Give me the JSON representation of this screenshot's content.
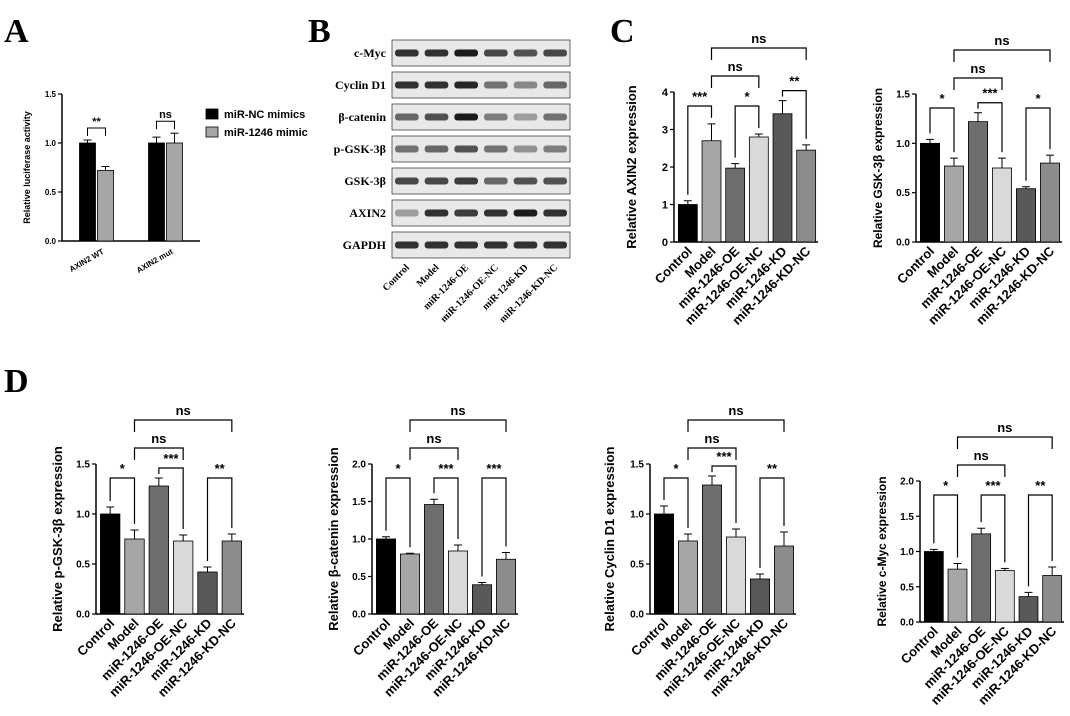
{
  "panel_labels": [
    "A",
    "B",
    "C",
    "D"
  ],
  "western_blot": {
    "proteins": [
      "c-Myc",
      "Cyclin D1",
      "β-catenin",
      "p-GSK-3β",
      "GSK-3β",
      "AXIN2",
      "GAPDH"
    ],
    "lanes": [
      "Control",
      "Model",
      "miR-1246-OE",
      "miR-1246-OE-NC",
      "miR-1246-KD",
      "miR-1246-KD-NC"
    ]
  },
  "chart_data": [
    {
      "id": "A",
      "type": "bar",
      "categories": [
        "AXIN2 WT",
        "AXIN2 mut"
      ],
      "series": [
        {
          "name": "miR-NC mimics",
          "values": [
            1.0,
            1.0
          ],
          "errors": [
            0.03,
            0.06
          ],
          "color": "#000000"
        },
        {
          "name": "miR-1246 mimic",
          "values": [
            0.72,
            1.0
          ],
          "errors": [
            0.04,
            0.1
          ],
          "color": "#a6a6a6"
        }
      ],
      "title": "",
      "xlabel": "",
      "ylabel": "Relative luciferase activity",
      "ylim": [
        0,
        1.5
      ],
      "yticks": [
        "0.0",
        "0.5",
        "1.0",
        "1.5"
      ],
      "legend": "right",
      "significance": [
        {
          "text": "**",
          "category": 0
        },
        {
          "text": "ns",
          "category": 1
        }
      ]
    },
    {
      "id": "C1",
      "type": "bar",
      "categories": [
        "Control",
        "Model",
        "miR-1246-OE",
        "miR-1246-OE-NC",
        "miR-1246-KD",
        "miR-1246-KD-NC"
      ],
      "values": [
        1.0,
        2.7,
        1.97,
        2.8,
        3.42,
        2.45
      ],
      "errors": [
        0.1,
        0.45,
        0.12,
        0.08,
        0.35,
        0.14
      ],
      "colors": [
        "#000000",
        "#a6a6a6",
        "#6e6e6e",
        "#d9d9d9",
        "#595959",
        "#8c8c8c"
      ],
      "title": "",
      "ylabel": "Relative AXIN2 expression",
      "ylim": [
        0,
        4
      ],
      "yticks": [
        "0",
        "1",
        "2",
        "3",
        "4"
      ],
      "significance": [
        {
          "text": "***",
          "from": 0,
          "to": 1,
          "level": 0
        },
        {
          "text": "*",
          "from": 2,
          "to": 3,
          "level": 0
        },
        {
          "text": "**",
          "from": 4,
          "to": 5,
          "level": 0
        },
        {
          "text": "ns",
          "from": 1,
          "to": 3,
          "level": 1
        },
        {
          "text": "ns",
          "from": 1,
          "to": 5,
          "level": 2
        }
      ]
    },
    {
      "id": "C2",
      "type": "bar",
      "categories": [
        "Control",
        "Model",
        "miR-1246-OE",
        "miR-1246-OE-NC",
        "miR-1246-KD",
        "miR-1246-KD-NC"
      ],
      "values": [
        1.0,
        0.77,
        1.22,
        0.75,
        0.54,
        0.8
      ],
      "errors": [
        0.04,
        0.08,
        0.09,
        0.1,
        0.02,
        0.08
      ],
      "colors": [
        "#000000",
        "#a6a6a6",
        "#6e6e6e",
        "#d9d9d9",
        "#595959",
        "#8c8c8c"
      ],
      "title": "",
      "ylabel": "Relative GSK-3β expression",
      "ylim": [
        0,
        1.5
      ],
      "yticks": [
        "0.0",
        "0.5",
        "1.0",
        "1.5"
      ],
      "significance": [
        {
          "text": "*",
          "from": 0,
          "to": 1,
          "level": 0
        },
        {
          "text": "***",
          "from": 2,
          "to": 3,
          "level": 0
        },
        {
          "text": "*",
          "from": 4,
          "to": 5,
          "level": 0
        },
        {
          "text": "ns",
          "from": 1,
          "to": 3,
          "level": 1
        },
        {
          "text": "ns",
          "from": 1,
          "to": 5,
          "level": 2
        }
      ]
    },
    {
      "id": "D1",
      "type": "bar",
      "categories": [
        "Control",
        "Model",
        "miR-1246-OE",
        "miR-1246-OE-NC",
        "miR-1246-KD",
        "miR-1246-KD-NC"
      ],
      "values": [
        1.0,
        0.75,
        1.28,
        0.73,
        0.42,
        0.73
      ],
      "errors": [
        0.07,
        0.09,
        0.08,
        0.06,
        0.05,
        0.07
      ],
      "colors": [
        "#000000",
        "#a6a6a6",
        "#6e6e6e",
        "#d9d9d9",
        "#595959",
        "#8c8c8c"
      ],
      "title": "",
      "ylabel": "Relative p-GSK-3β expression",
      "ylim": [
        0,
        1.5
      ],
      "yticks": [
        "0.0",
        "0.5",
        "1.0",
        "1.5"
      ],
      "significance": [
        {
          "text": "*",
          "from": 0,
          "to": 1,
          "level": 0
        },
        {
          "text": "***",
          "from": 2,
          "to": 3,
          "level": 0
        },
        {
          "text": "**",
          "from": 4,
          "to": 5,
          "level": 0
        },
        {
          "text": "ns",
          "from": 1,
          "to": 3,
          "level": 1
        },
        {
          "text": "ns",
          "from": 1,
          "to": 5,
          "level": 2
        }
      ]
    },
    {
      "id": "D2",
      "type": "bar",
      "categories": [
        "Control",
        "Model",
        "miR-1246-OE",
        "miR-1246-OE-NC",
        "miR-1246-KD",
        "miR-1246-KD-NC"
      ],
      "values": [
        1.0,
        0.8,
        1.46,
        0.84,
        0.39,
        0.73
      ],
      "errors": [
        0.03,
        0.01,
        0.07,
        0.08,
        0.03,
        0.09
      ],
      "colors": [
        "#000000",
        "#a6a6a6",
        "#6e6e6e",
        "#d9d9d9",
        "#595959",
        "#8c8c8c"
      ],
      "title": "",
      "ylabel": "Relative β-catenin expression",
      "ylim": [
        0,
        2.0
      ],
      "yticks": [
        "0.0",
        "0.5",
        "1.0",
        "1.5",
        "2.0"
      ],
      "significance": [
        {
          "text": "*",
          "from": 0,
          "to": 1,
          "level": 0
        },
        {
          "text": "***",
          "from": 2,
          "to": 3,
          "level": 0
        },
        {
          "text": "***",
          "from": 4,
          "to": 5,
          "level": 0
        },
        {
          "text": "ns",
          "from": 1,
          "to": 3,
          "level": 1
        },
        {
          "text": "ns",
          "from": 1,
          "to": 5,
          "level": 2
        }
      ]
    },
    {
      "id": "D3",
      "type": "bar",
      "categories": [
        "Control",
        "Model",
        "miR-1246-OE",
        "miR-1246-OE-NC",
        "miR-1246-KD",
        "miR-1246-KD-NC"
      ],
      "values": [
        1.0,
        0.73,
        1.29,
        0.77,
        0.35,
        0.68
      ],
      "errors": [
        0.08,
        0.07,
        0.09,
        0.08,
        0.05,
        0.14
      ],
      "colors": [
        "#000000",
        "#a6a6a6",
        "#6e6e6e",
        "#d9d9d9",
        "#595959",
        "#8c8c8c"
      ],
      "title": "",
      "ylabel": "Relative Cyclin D1 expression",
      "ylim": [
        0,
        1.5
      ],
      "yticks": [
        "0.0",
        "0.5",
        "1.0",
        "1.5"
      ],
      "significance": [
        {
          "text": "*",
          "from": 0,
          "to": 1,
          "level": 0
        },
        {
          "text": "***",
          "from": 2,
          "to": 3,
          "level": 0
        },
        {
          "text": "**",
          "from": 4,
          "to": 5,
          "level": 0
        },
        {
          "text": "ns",
          "from": 1,
          "to": 3,
          "level": 1
        },
        {
          "text": "ns",
          "from": 1,
          "to": 5,
          "level": 2
        }
      ]
    },
    {
      "id": "D4",
      "type": "bar",
      "categories": [
        "Control",
        "Model",
        "miR-1246-OE",
        "miR-1246-OE-NC",
        "miR-1246-KD",
        "miR-1246-KD-NC"
      ],
      "values": [
        1.0,
        0.75,
        1.25,
        0.73,
        0.36,
        0.66
      ],
      "errors": [
        0.03,
        0.08,
        0.08,
        0.03,
        0.06,
        0.12
      ],
      "colors": [
        "#000000",
        "#a6a6a6",
        "#6e6e6e",
        "#d9d9d9",
        "#595959",
        "#8c8c8c"
      ],
      "title": "",
      "ylabel": "Relative c-Myc expression",
      "ylim": [
        0,
        2.0
      ],
      "yticks": [
        "0.0",
        "0.5",
        "1.0",
        "1.5",
        "2.0"
      ],
      "significance": [
        {
          "text": "*",
          "from": 0,
          "to": 1,
          "level": 0
        },
        {
          "text": "***",
          "from": 2,
          "to": 3,
          "level": 0
        },
        {
          "text": "**",
          "from": 4,
          "to": 5,
          "level": 0
        },
        {
          "text": "ns",
          "from": 1,
          "to": 3,
          "level": 1
        },
        {
          "text": "ns",
          "from": 1,
          "to": 5,
          "level": 2
        }
      ]
    }
  ]
}
